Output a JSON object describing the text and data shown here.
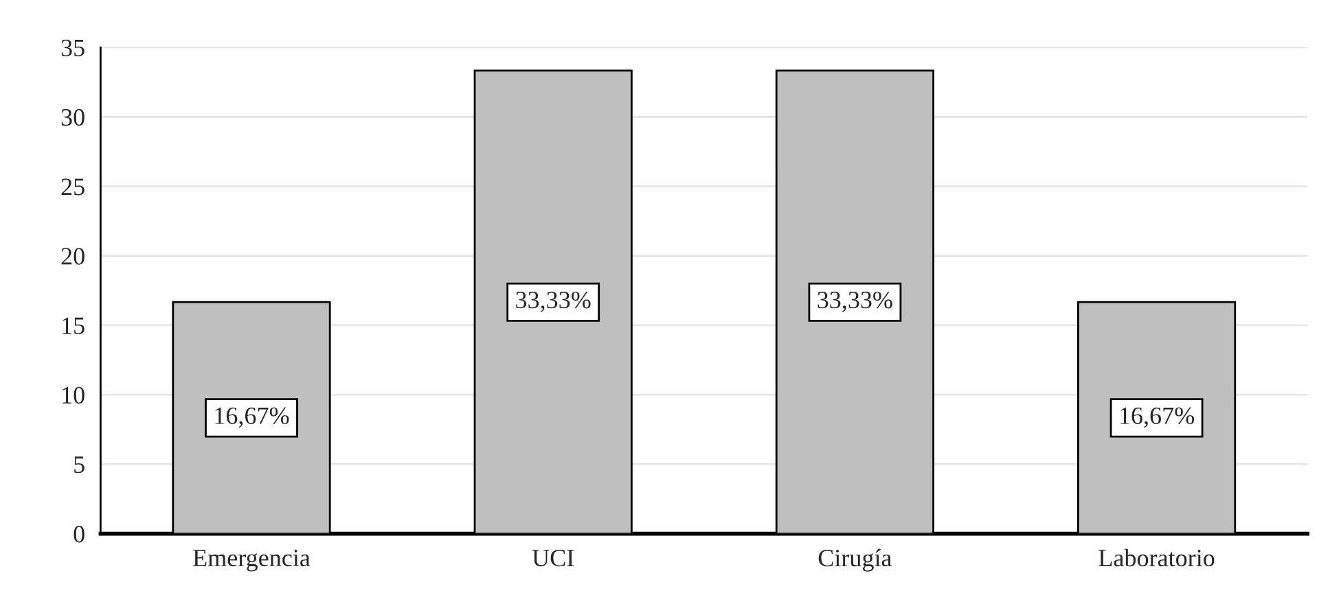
{
  "chart_data": {
    "type": "bar",
    "categories": [
      "Emergencia",
      "UCI",
      "Cirugía",
      "Laboratorio"
    ],
    "values": [
      16.67,
      33.33,
      33.33,
      16.67
    ],
    "value_labels": [
      "16,67%",
      "33,33%",
      "33,33%",
      "16,67%"
    ],
    "color": "#bfbfbf",
    "ylim": [
      0,
      35
    ],
    "yticks": [
      0,
      5,
      10,
      15,
      20,
      25,
      30,
      35
    ],
    "grid": "y",
    "legend": false
  }
}
